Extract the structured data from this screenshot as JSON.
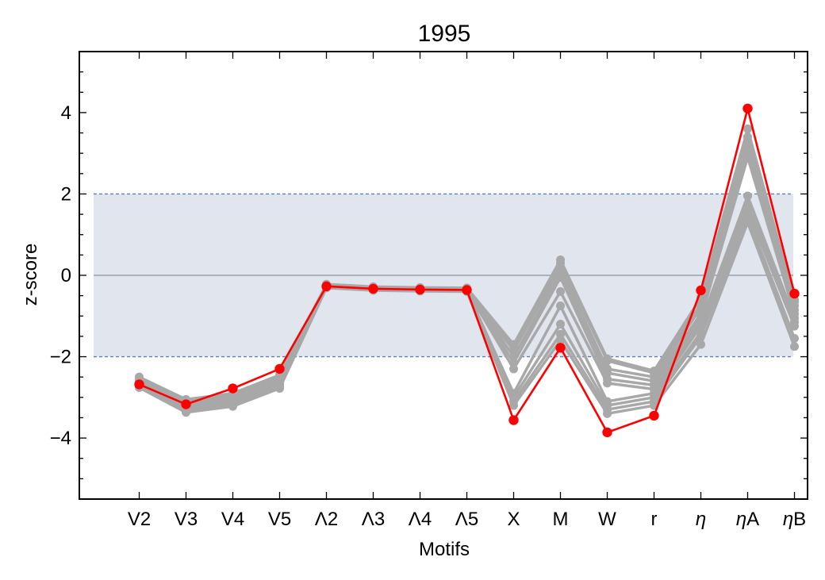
{
  "chart_data": {
    "type": "line",
    "title": "1995",
    "xlabel": "Motifs",
    "ylabel": "z-score",
    "categories": [
      "V2",
      "V3",
      "V4",
      "V5",
      "Λ2",
      "Λ3",
      "Λ4",
      "Λ5",
      "X",
      "M",
      "W",
      "r",
      "η",
      "ηA",
      "ηB"
    ],
    "category_italic_eta": [
      false,
      false,
      false,
      false,
      false,
      false,
      false,
      false,
      false,
      false,
      false,
      false,
      true,
      true,
      true
    ],
    "ylim": [
      -5.5,
      5.5
    ],
    "yticks": [
      -4,
      -2,
      0,
      2,
      4
    ],
    "band": {
      "low": -2,
      "high": 2,
      "fill": "#e0e5ee",
      "line_color": "#5e80b0"
    },
    "zero_line_color": "#8a94a6",
    "highlight_series": {
      "name": "1995",
      "color": "#ff0000",
      "values": [
        -2.68,
        -3.17,
        -2.78,
        -2.3,
        -0.27,
        -0.33,
        -0.35,
        -0.36,
        -3.56,
        -1.78,
        -3.86,
        -3.45,
        -0.37,
        4.1,
        -0.45
      ]
    },
    "background_series_color": "#a8a8a8",
    "background_series": [
      {
        "values": [
          -2.5,
          -3.05,
          -2.9,
          -2.45,
          -0.22,
          -0.28,
          -0.3,
          -0.31,
          -1.7,
          0.38,
          -2.05,
          -2.35,
          -0.55,
          3.6,
          -0.6
        ]
      },
      {
        "values": [
          -2.55,
          -3.1,
          -2.95,
          -2.5,
          -0.23,
          -0.29,
          -0.31,
          -0.32,
          -1.75,
          0.3,
          -2.1,
          -2.4,
          -0.7,
          3.4,
          -0.65
        ]
      },
      {
        "values": [
          -2.6,
          -3.15,
          -3.0,
          -2.55,
          -0.24,
          -0.3,
          -0.32,
          -0.33,
          -1.85,
          0.18,
          -2.3,
          -2.5,
          -0.8,
          3.2,
          -0.75
        ]
      },
      {
        "values": [
          -2.62,
          -3.2,
          -3.05,
          -2.6,
          -0.25,
          -0.31,
          -0.33,
          -0.34,
          -2.0,
          0.05,
          -2.4,
          -2.6,
          -0.95,
          3.0,
          -0.85
        ]
      },
      {
        "values": [
          -2.65,
          -3.25,
          -3.1,
          -2.65,
          -0.26,
          -0.32,
          -0.34,
          -0.35,
          -2.15,
          -0.05,
          -2.55,
          -2.7,
          -1.05,
          2.9,
          -0.95
        ]
      },
      {
        "values": [
          -2.68,
          -3.28,
          -3.12,
          -2.68,
          -0.27,
          -0.33,
          -0.35,
          -0.36,
          -2.3,
          -0.4,
          -2.65,
          -2.8,
          -1.15,
          1.95,
          -1.05
        ]
      },
      {
        "values": [
          -2.7,
          -3.3,
          -3.15,
          -2.7,
          -0.28,
          -0.34,
          -0.36,
          -0.37,
          -2.9,
          -0.75,
          -3.1,
          -2.9,
          -1.25,
          1.75,
          -1.15
        ]
      },
      {
        "values": [
          -2.72,
          -3.32,
          -3.18,
          -2.72,
          -0.29,
          -0.35,
          -0.37,
          -0.38,
          -3.0,
          -1.2,
          -3.2,
          -3.0,
          -1.4,
          1.6,
          -1.25
        ]
      },
      {
        "values": [
          -2.74,
          -3.35,
          -3.2,
          -2.75,
          -0.3,
          -0.36,
          -0.38,
          -0.39,
          -3.1,
          -1.45,
          -3.3,
          -3.1,
          -1.5,
          1.45,
          -1.55
        ]
      },
      {
        "values": [
          -2.76,
          -3.37,
          -3.22,
          -2.78,
          -0.31,
          -0.37,
          -0.39,
          -0.4,
          -3.2,
          -1.6,
          -3.4,
          -3.2,
          -1.7,
          1.3,
          -1.75
        ]
      }
    ]
  }
}
